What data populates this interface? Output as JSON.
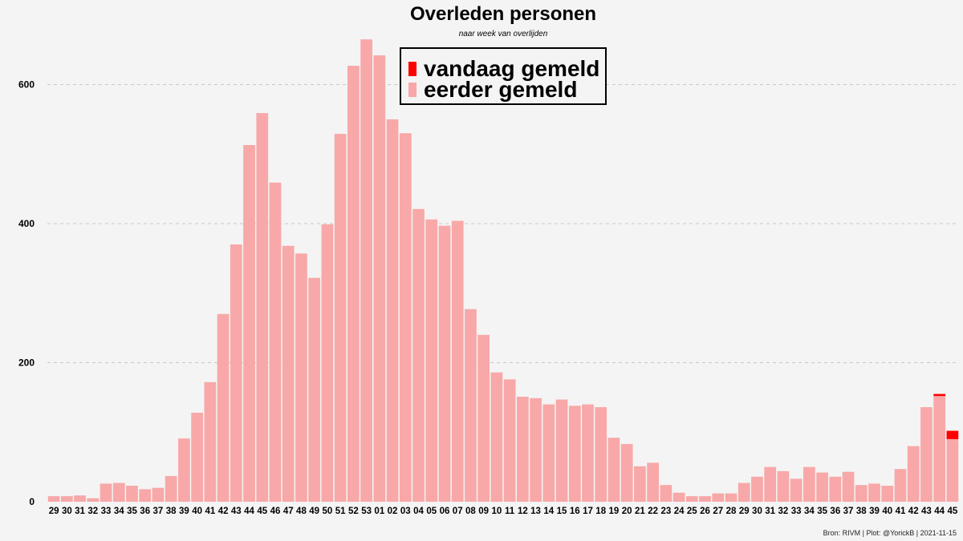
{
  "chart_data": {
    "type": "bar",
    "title": "Overleden personen",
    "subtitle": "naar week van overlijden",
    "xlabel": "",
    "ylabel": "",
    "ylim": [
      0,
      680
    ],
    "yticks": [
      0,
      200,
      400,
      600
    ],
    "grid": "horizontal dashed",
    "legend_position": "top-center",
    "categories": [
      "29",
      "30",
      "31",
      "32",
      "33",
      "34",
      "35",
      "36",
      "37",
      "38",
      "39",
      "40",
      "41",
      "42",
      "43",
      "44",
      "45",
      "46",
      "47",
      "48",
      "49",
      "50",
      "51",
      "52",
      "53",
      "01",
      "02",
      "03",
      "04",
      "05",
      "06",
      "07",
      "08",
      "09",
      "10",
      "11",
      "12",
      "13",
      "14",
      "15",
      "16",
      "17",
      "18",
      "19",
      "20",
      "21",
      "22",
      "23",
      "24",
      "25",
      "26",
      "27",
      "28",
      "29",
      "30",
      "31",
      "32",
      "33",
      "34",
      "35",
      "36",
      "37",
      "38",
      "39",
      "40",
      "41",
      "42",
      "43",
      "44",
      "45"
    ],
    "series": [
      {
        "name": "eerder gemeld",
        "color": "#f8a8a8",
        "values": [
          8,
          8,
          9,
          5,
          26,
          27,
          23,
          18,
          20,
          37,
          91,
          128,
          172,
          270,
          370,
          513,
          559,
          459,
          368,
          357,
          322,
          399,
          529,
          627,
          665,
          642,
          550,
          530,
          421,
          406,
          397,
          404,
          277,
          240,
          186,
          176,
          151,
          149,
          140,
          147,
          138,
          140,
          136,
          92,
          83,
          51,
          56,
          24,
          13,
          8,
          8,
          12,
          12,
          27,
          36,
          50,
          44,
          33,
          50,
          42,
          36,
          43,
          24,
          26,
          23,
          47,
          80,
          136,
          152,
          90
        ]
      },
      {
        "name": "vandaag gemeld",
        "color": "#ff0000",
        "values": [
          0,
          0,
          0,
          0,
          0,
          0,
          0,
          0,
          0,
          0,
          0,
          0,
          0,
          0,
          0,
          0,
          0,
          0,
          0,
          0,
          0,
          0,
          0,
          0,
          0,
          0,
          0,
          0,
          0,
          0,
          0,
          0,
          0,
          0,
          0,
          0,
          0,
          0,
          0,
          0,
          0,
          0,
          0,
          0,
          0,
          0,
          0,
          0,
          0,
          0,
          0,
          0,
          0,
          0,
          0,
          0,
          0,
          0,
          0,
          0,
          0,
          0,
          0,
          0,
          0,
          0,
          0,
          0,
          3,
          12
        ]
      }
    ]
  },
  "legend": {
    "today_label": "vandaag gemeld",
    "earlier_label": "eerder gemeld"
  },
  "caption": "Bron: RIVM | Plot: @YorickB |  2021-11-15"
}
